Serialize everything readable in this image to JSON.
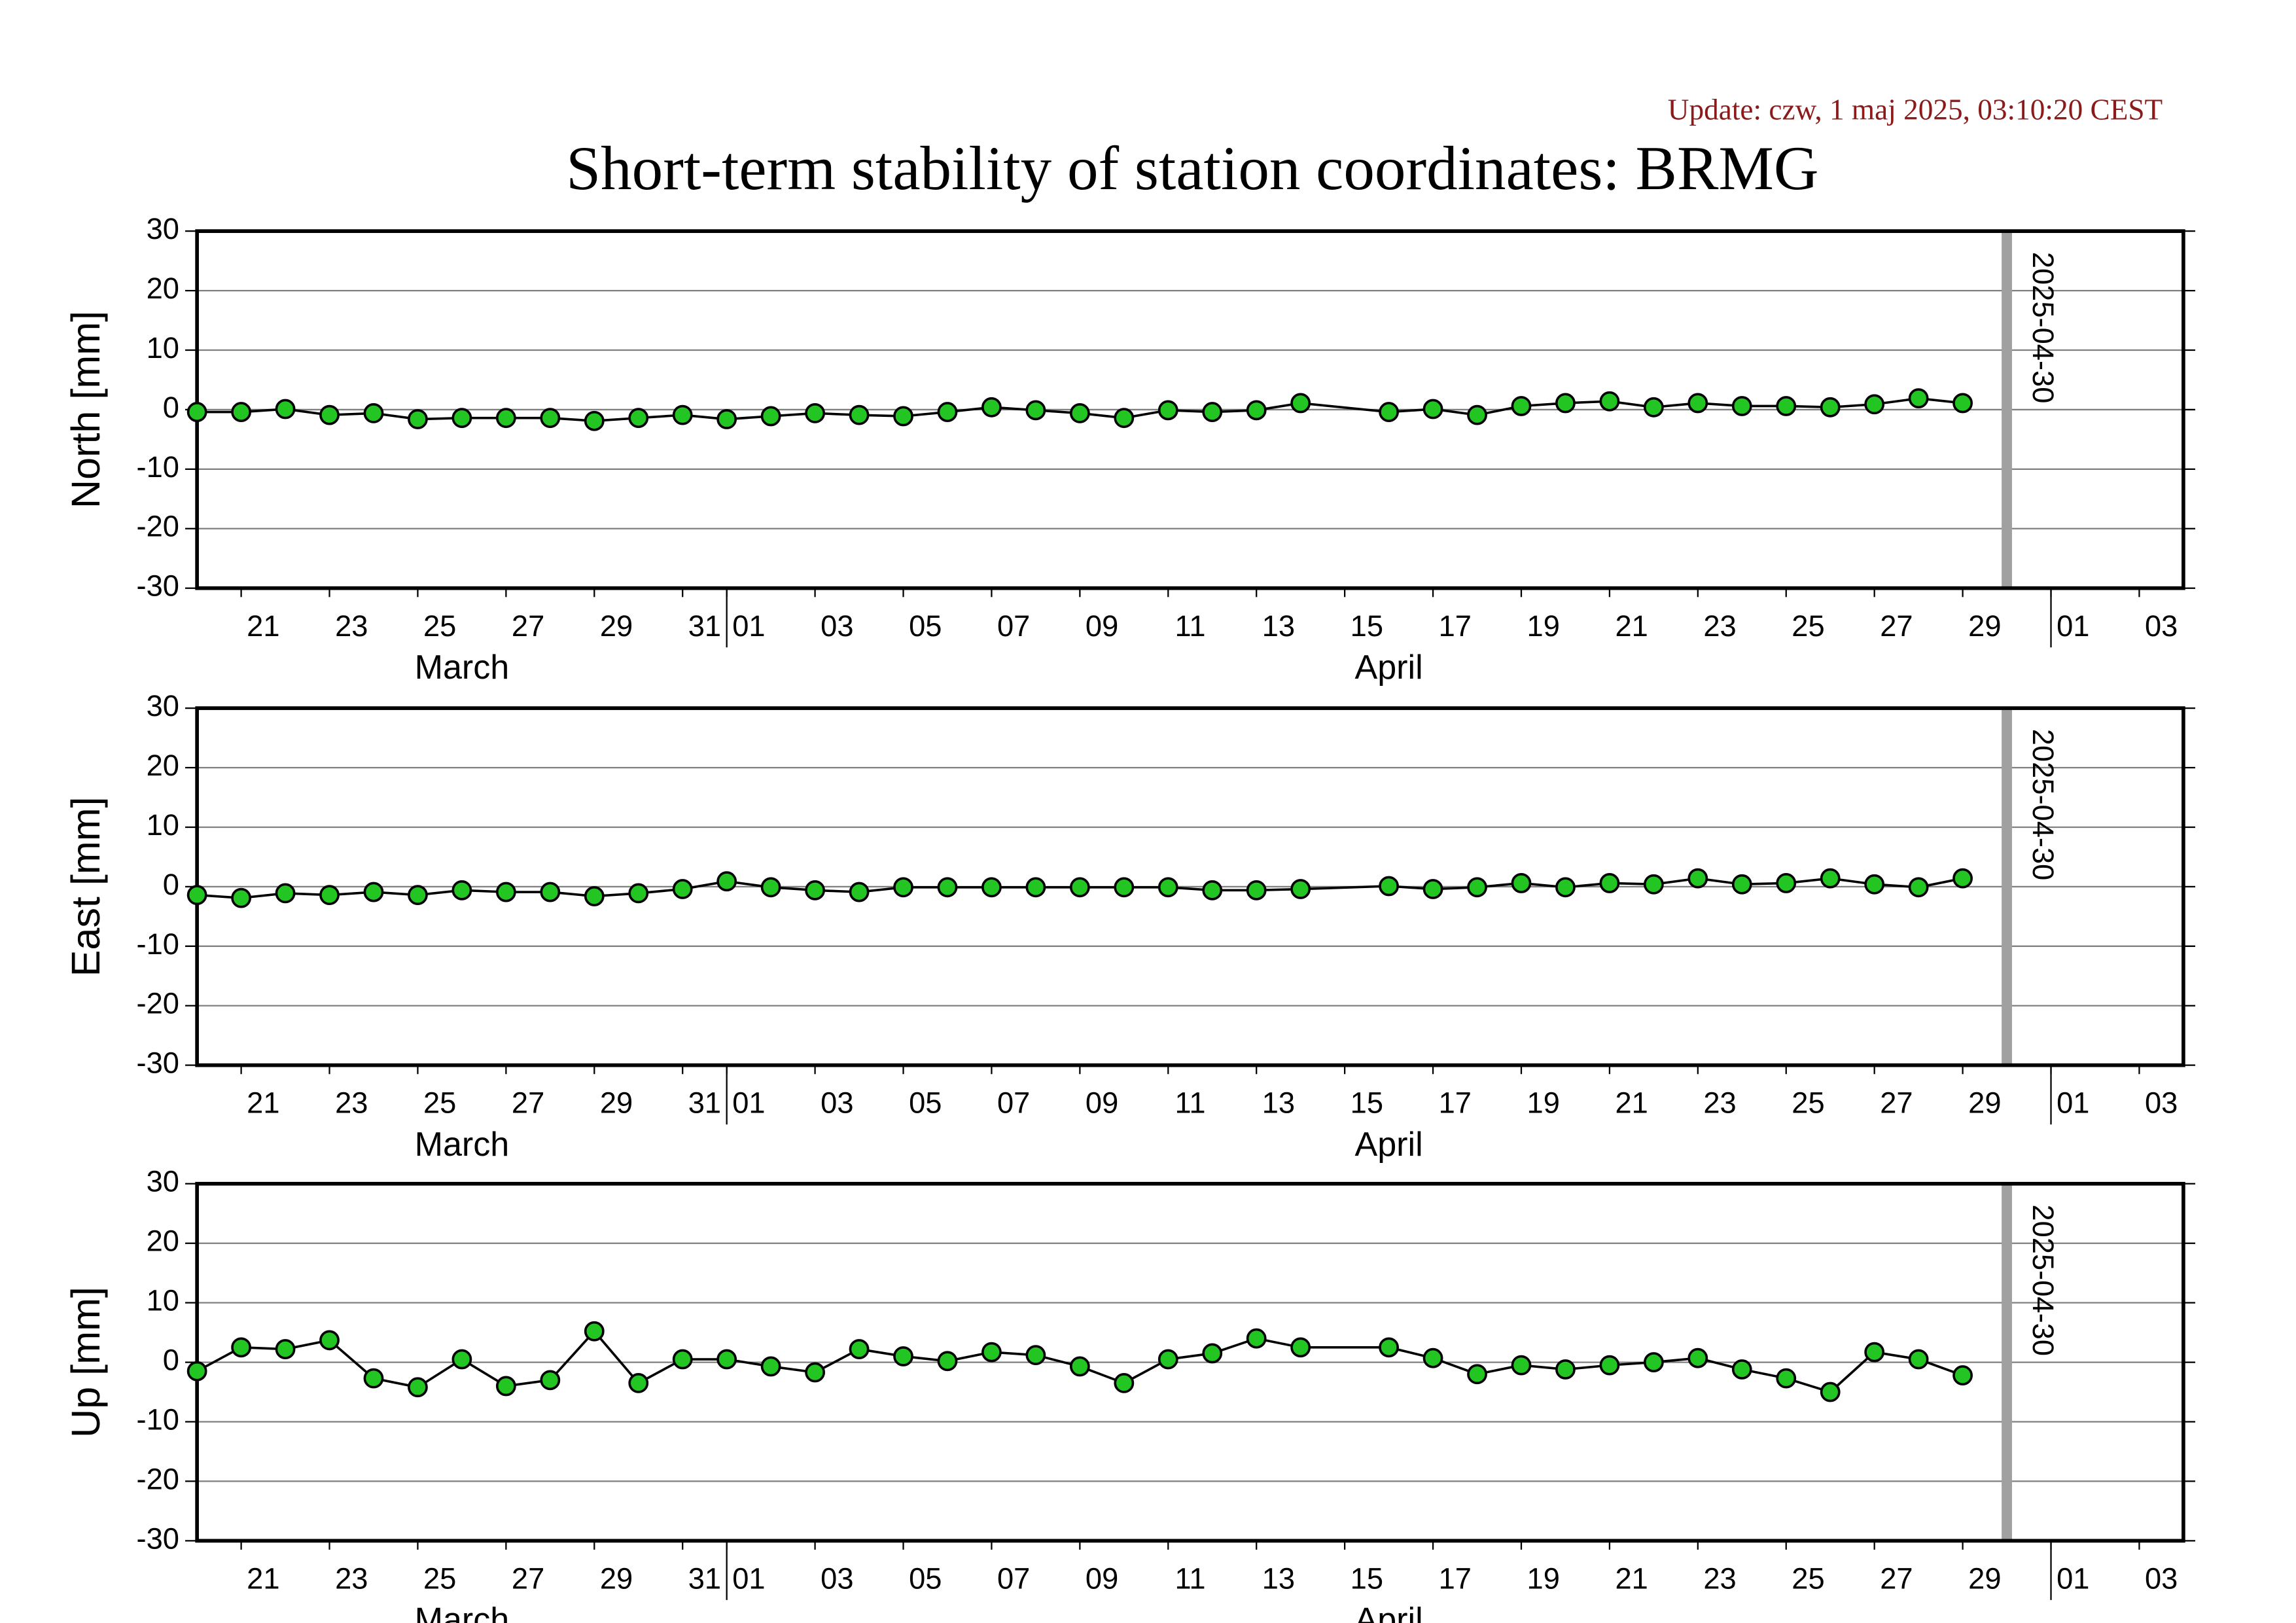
{
  "chart_data": [
    {
      "type": "line",
      "title": "Short-term stability of station coordinates: BRMG",
      "subtitle": "Update: czw, 1 maj 2025, 03:10:20 CEST",
      "ylabel": "North [mm]",
      "x": [
        "03-20",
        "03-21",
        "03-22",
        "03-23",
        "03-24",
        "03-25",
        "03-26",
        "03-27",
        "03-28",
        "03-29",
        "03-30",
        "03-31",
        "04-01",
        "04-02",
        "04-03",
        "04-04",
        "04-05",
        "04-06",
        "04-07",
        "04-08",
        "04-09",
        "04-10",
        "04-11",
        "04-12",
        "04-13",
        "04-14",
        "04-16",
        "04-17",
        "04-18",
        "04-19",
        "04-20",
        "04-21",
        "04-22",
        "04-23",
        "04-24",
        "04-25",
        "04-26",
        "04-27",
        "04-28",
        "04-29"
      ],
      "values": [
        -0.4,
        -0.4,
        0.1,
        -0.9,
        -0.6,
        -1.6,
        -1.4,
        -1.4,
        -1.4,
        -1.9,
        -1.4,
        -0.9,
        -1.6,
        -1.1,
        -0.6,
        -0.9,
        -1.1,
        -0.4,
        0.4,
        -0.1,
        -0.6,
        -1.4,
        -0.1,
        -0.4,
        -0.1,
        1.1,
        -0.4,
        0.1,
        -0.9,
        0.6,
        1.1,
        1.4,
        0.4,
        1.1,
        0.6,
        0.6,
        0.4,
        0.9,
        1.9,
        1.1
      ],
      "color": "#22c522",
      "line_color": "#000000",
      "xlim": [
        "03-20",
        "05-04"
      ],
      "ylim": [
        -30,
        30
      ],
      "yticks": [
        -30,
        -20,
        -10,
        0,
        10,
        20,
        30
      ],
      "grid": true,
      "xticks": [
        {
          "value": "03-21",
          "label": "21"
        },
        {
          "value": "03-23",
          "label": "23"
        },
        {
          "value": "03-25",
          "label": "25"
        },
        {
          "value": "03-27",
          "label": "27"
        },
        {
          "value": "03-29",
          "label": "29"
        },
        {
          "value": "03-31",
          "label": "31"
        },
        {
          "value": "04-01",
          "label": "01"
        },
        {
          "value": "04-03",
          "label": "03"
        },
        {
          "value": "04-05",
          "label": "05"
        },
        {
          "value": "04-07",
          "label": "07"
        },
        {
          "value": "04-09",
          "label": "09"
        },
        {
          "value": "04-11",
          "label": "11"
        },
        {
          "value": "04-13",
          "label": "13"
        },
        {
          "value": "04-15",
          "label": "15"
        },
        {
          "value": "04-17",
          "label": "17"
        },
        {
          "value": "04-19",
          "label": "19"
        },
        {
          "value": "04-21",
          "label": "21"
        },
        {
          "value": "04-23",
          "label": "23"
        },
        {
          "value": "04-25",
          "label": "25"
        },
        {
          "value": "04-27",
          "label": "27"
        },
        {
          "value": "04-29",
          "label": "29"
        },
        {
          "value": "05-01",
          "label": "01"
        },
        {
          "value": "05-03",
          "label": "03"
        }
      ],
      "month_ticks": [
        "04-01",
        "05-01"
      ],
      "months": [
        {
          "value": "03-01",
          "label": "March"
        },
        {
          "value": "04-01",
          "label": "April"
        }
      ],
      "marker": {
        "value": "04-30",
        "label": "2025-04-30",
        "color": "#a0a0a0"
      }
    },
    {
      "type": "line",
      "ylabel": "East [mm]",
      "x": [
        "03-20",
        "03-21",
        "03-22",
        "03-23",
        "03-24",
        "03-25",
        "03-26",
        "03-27",
        "03-28",
        "03-29",
        "03-30",
        "03-31",
        "04-01",
        "04-02",
        "04-03",
        "04-04",
        "04-05",
        "04-06",
        "04-07",
        "04-08",
        "04-09",
        "04-10",
        "04-11",
        "04-12",
        "04-13",
        "04-14",
        "04-16",
        "04-17",
        "04-18",
        "04-19",
        "04-20",
        "04-21",
        "04-22",
        "04-23",
        "04-24",
        "04-25",
        "04-26",
        "04-27",
        "04-28",
        "04-29"
      ],
      "values": [
        -1.4,
        -1.9,
        -1.1,
        -1.4,
        -0.9,
        -1.4,
        -0.6,
        -0.9,
        -0.9,
        -1.6,
        -1.1,
        -0.4,
        0.9,
        -0.1,
        -0.6,
        -0.9,
        -0.1,
        -0.1,
        -0.1,
        -0.1,
        -0.1,
        -0.1,
        -0.1,
        -0.6,
        -0.6,
        -0.4,
        0.1,
        -0.4,
        -0.1,
        0.6,
        -0.1,
        0.6,
        0.4,
        1.4,
        0.4,
        0.6,
        1.4,
        0.4,
        -0.1,
        1.4
      ],
      "color": "#22c522",
      "line_color": "#000000",
      "xlim": [
        "03-20",
        "05-04"
      ],
      "ylim": [
        -30,
        30
      ],
      "yticks": [
        -30,
        -20,
        -10,
        0,
        10,
        20,
        30
      ],
      "grid": true,
      "xticks": [
        {
          "value": "03-21",
          "label": "21"
        },
        {
          "value": "03-23",
          "label": "23"
        },
        {
          "value": "03-25",
          "label": "25"
        },
        {
          "value": "03-27",
          "label": "27"
        },
        {
          "value": "03-29",
          "label": "29"
        },
        {
          "value": "03-31",
          "label": "31"
        },
        {
          "value": "04-01",
          "label": "01"
        },
        {
          "value": "04-03",
          "label": "03"
        },
        {
          "value": "04-05",
          "label": "05"
        },
        {
          "value": "04-07",
          "label": "07"
        },
        {
          "value": "04-09",
          "label": "09"
        },
        {
          "value": "04-11",
          "label": "11"
        },
        {
          "value": "04-13",
          "label": "13"
        },
        {
          "value": "04-15",
          "label": "15"
        },
        {
          "value": "04-17",
          "label": "17"
        },
        {
          "value": "04-19",
          "label": "19"
        },
        {
          "value": "04-21",
          "label": "21"
        },
        {
          "value": "04-23",
          "label": "23"
        },
        {
          "value": "04-25",
          "label": "25"
        },
        {
          "value": "04-27",
          "label": "27"
        },
        {
          "value": "04-29",
          "label": "29"
        },
        {
          "value": "05-01",
          "label": "01"
        },
        {
          "value": "05-03",
          "label": "03"
        }
      ],
      "month_ticks": [
        "04-01",
        "05-01"
      ],
      "months": [
        {
          "value": "03-01",
          "label": "March"
        },
        {
          "value": "04-01",
          "label": "April"
        }
      ],
      "marker": {
        "value": "04-30",
        "label": "2025-04-30",
        "color": "#a0a0a0"
      }
    },
    {
      "type": "line",
      "ylabel": "Up [mm]",
      "x": [
        "03-20",
        "03-21",
        "03-22",
        "03-23",
        "03-24",
        "03-25",
        "03-26",
        "03-27",
        "03-28",
        "03-29",
        "03-30",
        "03-31",
        "04-01",
        "04-02",
        "04-03",
        "04-04",
        "04-05",
        "04-06",
        "04-07",
        "04-08",
        "04-09",
        "04-10",
        "04-11",
        "04-12",
        "04-13",
        "04-14",
        "04-16",
        "04-17",
        "04-18",
        "04-19",
        "04-20",
        "04-21",
        "04-22",
        "04-23",
        "04-24",
        "04-25",
        "04-26",
        "04-27",
        "04-28",
        "04-29"
      ],
      "values": [
        -1.5,
        2.5,
        2.2,
        3.7,
        -2.7,
        -4.2,
        0.5,
        -4.0,
        -3.0,
        5.2,
        -3.5,
        0.5,
        0.5,
        -0.7,
        -1.7,
        2.2,
        1.0,
        0.2,
        1.7,
        1.2,
        -0.7,
        -3.5,
        0.5,
        1.5,
        4.0,
        2.5,
        2.5,
        0.7,
        -2.0,
        -0.5,
        -1.2,
        -0.5,
        0,
        0.7,
        -1.2,
        -2.7,
        -5.0,
        1.7,
        0.5,
        -2.2
      ],
      "color": "#22c522",
      "line_color": "#000000",
      "xlim": [
        "03-20",
        "05-04"
      ],
      "ylim": [
        -30,
        30
      ],
      "yticks": [
        -30,
        -20,
        -10,
        0,
        10,
        20,
        30
      ],
      "grid": true,
      "xticks": [
        {
          "value": "03-21",
          "label": "21"
        },
        {
          "value": "03-23",
          "label": "23"
        },
        {
          "value": "03-25",
          "label": "25"
        },
        {
          "value": "03-27",
          "label": "27"
        },
        {
          "value": "03-29",
          "label": "29"
        },
        {
          "value": "03-31",
          "label": "31"
        },
        {
          "value": "04-01",
          "label": "01"
        },
        {
          "value": "04-03",
          "label": "03"
        },
        {
          "value": "04-05",
          "label": "05"
        },
        {
          "value": "04-07",
          "label": "07"
        },
        {
          "value": "04-09",
          "label": "09"
        },
        {
          "value": "04-11",
          "label": "11"
        },
        {
          "value": "04-13",
          "label": "13"
        },
        {
          "value": "04-15",
          "label": "15"
        },
        {
          "value": "04-17",
          "label": "17"
        },
        {
          "value": "04-19",
          "label": "19"
        },
        {
          "value": "04-21",
          "label": "21"
        },
        {
          "value": "04-23",
          "label": "23"
        },
        {
          "value": "04-25",
          "label": "25"
        },
        {
          "value": "04-27",
          "label": "27"
        },
        {
          "value": "04-29",
          "label": "29"
        },
        {
          "value": "05-01",
          "label": "01"
        },
        {
          "value": "05-03",
          "label": "03"
        }
      ],
      "month_ticks": [
        "04-01",
        "05-01"
      ],
      "months": [
        {
          "value": "03-01",
          "label": "March"
        },
        {
          "value": "04-01",
          "label": "April"
        }
      ],
      "marker": {
        "value": "04-30",
        "label": "2025-04-30",
        "color": "#a0a0a0"
      }
    }
  ]
}
